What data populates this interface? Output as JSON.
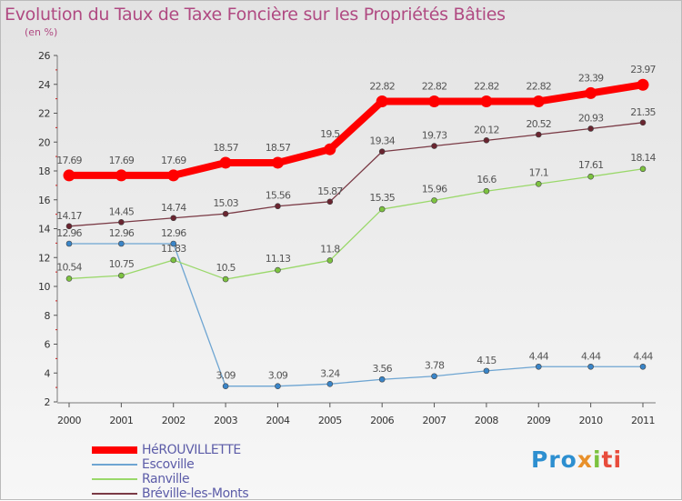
{
  "chart_data": {
    "type": "line",
    "title": "Evolution du Taux de Taxe Foncière sur les Propriétés Bâties",
    "subtitle": "(en %)",
    "xlabel": "",
    "ylabel": "",
    "ylim": [
      2,
      26
    ],
    "yticks": [
      2,
      4,
      6,
      8,
      10,
      12,
      14,
      16,
      18,
      20,
      22,
      24,
      26
    ],
    "categories": [
      "2000",
      "2001",
      "2002",
      "2003",
      "2004",
      "2005",
      "2006",
      "2007",
      "2008",
      "2009",
      "2010",
      "2011"
    ],
    "grid": false,
    "legend_position": "bottom-left",
    "series": [
      {
        "name": "HéROUVILLETTE",
        "color": "#ff0000",
        "values": [
          17.69,
          17.69,
          17.69,
          18.57,
          18.57,
          19.5,
          22.82,
          22.82,
          22.82,
          22.82,
          23.39,
          23.97
        ],
        "labels": [
          "17.69",
          "17.69",
          "17.69",
          "18.57",
          "18.57",
          "19.5",
          "22.82",
          "22.82",
          "22.82",
          "22.82",
          "23.39",
          "23.97"
        ]
      },
      {
        "name": "Escoville",
        "color": "#6ea5d2",
        "values": [
          12.96,
          12.96,
          12.96,
          3.09,
          3.09,
          3.24,
          3.56,
          3.78,
          4.15,
          4.44,
          4.44,
          4.44
        ],
        "labels": [
          "12.96",
          "12.96",
          "12.96",
          "3.09",
          "3.09",
          "3.24",
          "3.56",
          "3.78",
          "4.15",
          "4.44",
          "4.44",
          "4.44"
        ]
      },
      {
        "name": "Ranville",
        "color": "#9ad86a",
        "values": [
          10.54,
          10.75,
          11.83,
          10.5,
          11.13,
          11.8,
          15.35,
          15.96,
          16.6,
          17.1,
          17.61,
          18.14
        ],
        "labels": [
          "10.54",
          "10.75",
          "11.83",
          "10.5",
          "11.13",
          "11.8",
          "15.35",
          "15.96",
          "16.6",
          "17.1",
          "17.61",
          "18.14"
        ]
      },
      {
        "name": "Bréville-les-Monts",
        "color": "#7a3a45",
        "values": [
          14.17,
          14.45,
          14.74,
          15.03,
          15.56,
          15.87,
          19.34,
          19.73,
          20.12,
          20.52,
          20.93,
          21.35
        ],
        "labels": [
          "14.17",
          "14.45",
          "14.74",
          "15.03",
          "15.56",
          "15.87",
          "19.34",
          "19.73",
          "20.12",
          "20.52",
          "20.93",
          "21.35"
        ]
      }
    ]
  },
  "logo": {
    "text": "Proxiti",
    "p1": "Pro",
    "p2": "x",
    "p3": "i",
    "p4": "ti"
  }
}
